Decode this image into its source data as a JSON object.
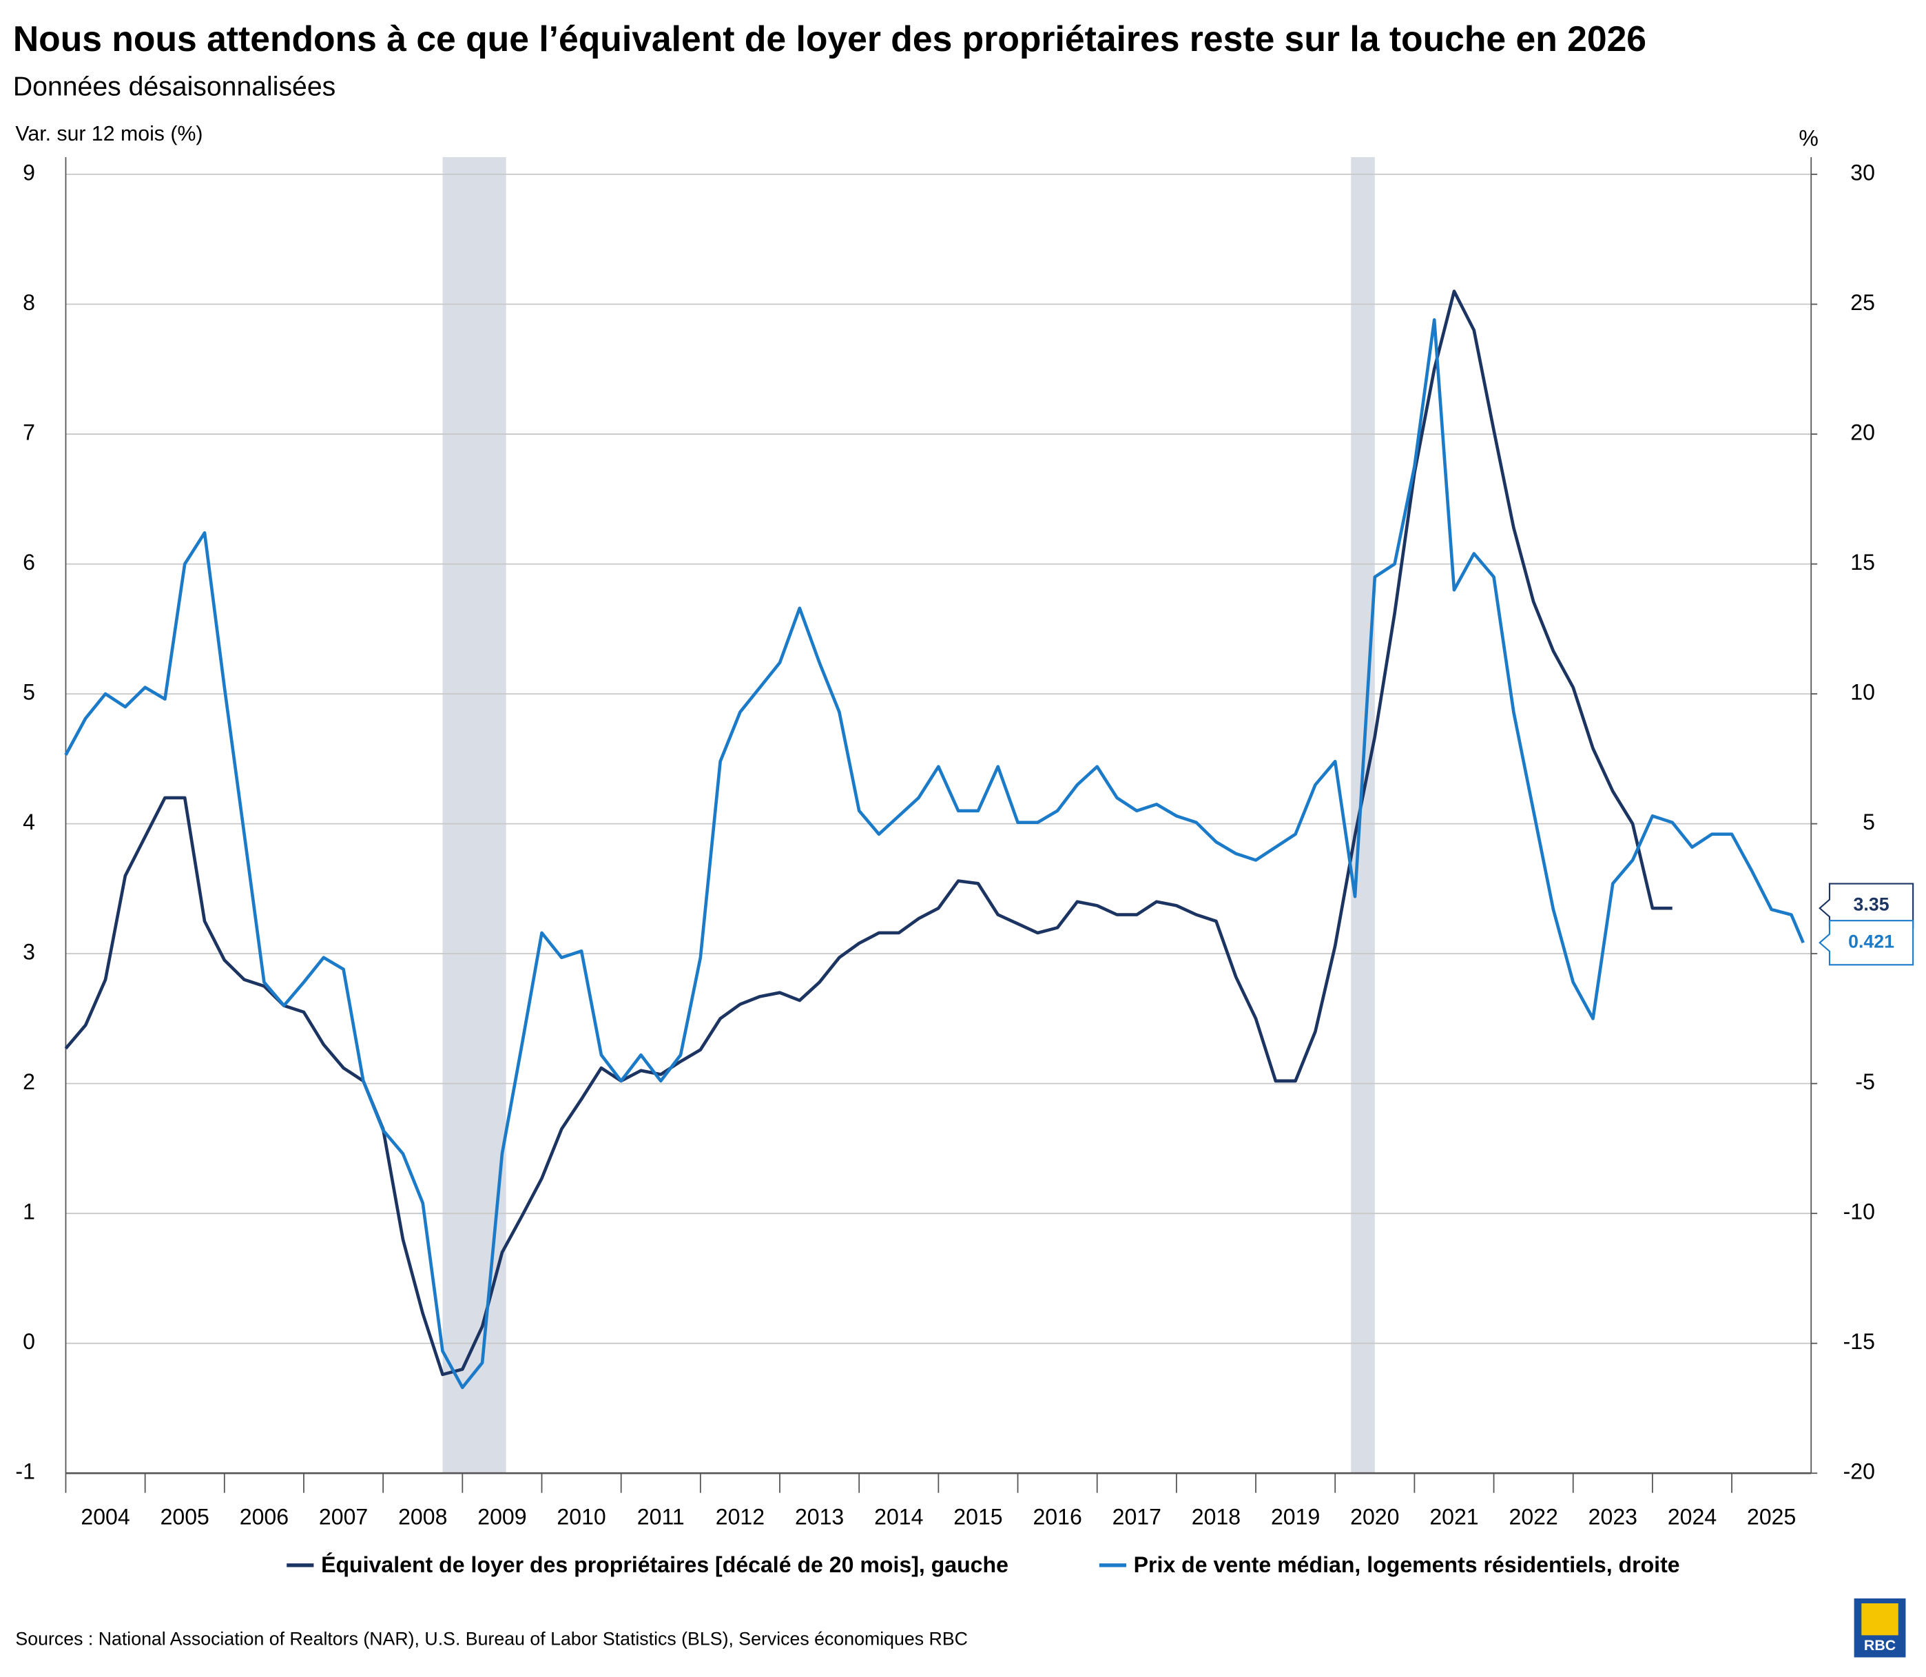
{
  "chart_data": {
    "type": "line",
    "title": "Nous nous attendons à ce que l’équivalent de loyer des propriétaires reste sur la touche en 2026",
    "subtitle": "Données désaisonnalisées",
    "y_label": "Var. sur 12 mois (%)",
    "y2_label": "%",
    "source": "Sources : National Association of Realtors (NAR), U.S. Bureau of Labor Statistics (BLS), Services économiques RBC",
    "logo": "RBC",
    "xlim": [
      2004,
      2026
    ],
    "xticks": [
      2004,
      2005,
      2006,
      2007,
      2008,
      2009,
      2010,
      2011,
      2012,
      2013,
      2014,
      2015,
      2016,
      2017,
      2018,
      2019,
      2020,
      2021,
      2022,
      2023,
      2024,
      2025
    ],
    "ylim": [
      -1,
      9
    ],
    "yticks": [
      -1,
      0,
      1,
      2,
      3,
      4,
      5,
      6,
      7,
      8,
      9
    ],
    "y2lim": [
      -20,
      30
    ],
    "y2ticks": [
      -20,
      -15,
      -10,
      -5,
      0,
      5,
      10,
      15,
      20,
      25,
      30
    ],
    "grid": true,
    "shaded_periods": [
      [
        2008.75,
        2009.55
      ],
      [
        2020.2,
        2020.5
      ]
    ],
    "series": [
      {
        "name": "Équivalent de loyer des propriétaires [décalé de 20 mois], gauche",
        "color": "#1c3461",
        "axis": "y",
        "x": [
          2004,
          2004.25,
          2004.5,
          2004.75,
          2005,
          2005.25,
          2005.5,
          2005.75,
          2006,
          2006.25,
          2006.5,
          2006.75,
          2007,
          2007.25,
          2007.5,
          2007.75,
          2008,
          2008.25,
          2008.5,
          2008.75,
          2009,
          2009.25,
          2009.5,
          2009.75,
          2010,
          2010.25,
          2010.5,
          2010.75,
          2011,
          2011.25,
          2011.5,
          2011.75,
          2012,
          2012.25,
          2012.5,
          2012.75,
          2013,
          2013.25,
          2013.5,
          2013.75,
          2014,
          2014.25,
          2014.5,
          2014.75,
          2015,
          2015.25,
          2015.5,
          2015.75,
          2016,
          2016.25,
          2016.5,
          2016.75,
          2017,
          2017.25,
          2017.5,
          2017.75,
          2018,
          2018.25,
          2018.5,
          2018.75,
          2019,
          2019.25,
          2019.5,
          2019.75,
          2020,
          2020.25,
          2020.5,
          2020.75,
          2021,
          2021.25,
          2021.5,
          2021.75,
          2022,
          2022.25,
          2022.5,
          2022.75,
          2023,
          2023.25,
          2023.5,
          2023.75,
          2024,
          2024.25
        ],
        "values": [
          2.27,
          2.45,
          2.8,
          3.6,
          3.9,
          4.2,
          4.2,
          3.25,
          2.95,
          2.8,
          2.75,
          2.6,
          2.55,
          2.3,
          2.12,
          2.02,
          1.65,
          0.8,
          0.23,
          -0.24,
          -0.2,
          0.13,
          0.7,
          0.98,
          1.27,
          1.65,
          1.88,
          2.12,
          2.02,
          2.1,
          2.07,
          2.17,
          2.26,
          2.5,
          2.61,
          2.67,
          2.7,
          2.64,
          2.78,
          2.97,
          3.08,
          3.16,
          3.16,
          3.27,
          3.35,
          3.56,
          3.54,
          3.3,
          3.23,
          3.16,
          3.2,
          3.4,
          3.37,
          3.3,
          3.3,
          3.4,
          3.37,
          3.3,
          3.25,
          2.82,
          2.5,
          2.02,
          2.02,
          2.4,
          3.06,
          3.91,
          4.67,
          5.62,
          6.7,
          7.5,
          8.1,
          7.8,
          7.03,
          6.28,
          5.71,
          5.33,
          5.05,
          4.58,
          4.25,
          4.0,
          3.35,
          3.35
        ]
      },
      {
        "name": "Prix de vente médian, logements résidentiels, droite",
        "color": "#1b7bc8",
        "axis": "y2",
        "x": [
          2004,
          2004.25,
          2004.5,
          2004.75,
          2005,
          2005.25,
          2005.5,
          2005.75,
          2006,
          2006.25,
          2006.5,
          2006.75,
          2007,
          2007.25,
          2007.5,
          2007.75,
          2008,
          2008.25,
          2008.5,
          2008.75,
          2009,
          2009.25,
          2009.5,
          2009.75,
          2010,
          2010.25,
          2010.5,
          2010.75,
          2011,
          2011.25,
          2011.5,
          2011.75,
          2012,
          2012.25,
          2012.5,
          2012.75,
          2013,
          2013.25,
          2013.5,
          2013.75,
          2014,
          2014.25,
          2014.5,
          2014.75,
          2015,
          2015.25,
          2015.5,
          2015.75,
          2016,
          2016.25,
          2016.5,
          2016.75,
          2017,
          2017.25,
          2017.5,
          2017.75,
          2018,
          2018.25,
          2018.5,
          2018.75,
          2019,
          2019.25,
          2019.5,
          2019.75,
          2020,
          2020.25,
          2020.5,
          2020.75,
          2021,
          2021.25,
          2021.5,
          2021.75,
          2022,
          2022.25,
          2022.5,
          2022.75,
          2023,
          2023.25,
          2023.5,
          2023.75,
          2024,
          2024.25,
          2024.5,
          2024.75,
          2025,
          2025.25,
          2025.5,
          2025.75,
          2025.9
        ],
        "values": [
          7.65,
          9.06,
          10.0,
          9.5,
          10.25,
          9.8,
          15.0,
          16.2,
          10.25,
          4.6,
          -1.1,
          -2.0,
          -1.1,
          -0.15,
          -0.6,
          -4.9,
          -6.8,
          -7.7,
          -9.6,
          -15.3,
          -16.7,
          -15.75,
          -7.7,
          -3.5,
          0.8,
          -0.15,
          0.1,
          -3.9,
          -4.9,
          -3.9,
          -4.9,
          -3.9,
          -0.15,
          7.4,
          9.3,
          10.25,
          11.2,
          13.3,
          11.2,
          9.3,
          5.5,
          4.6,
          5.3,
          6.0,
          7.2,
          5.5,
          5.5,
          7.2,
          5.05,
          5.05,
          5.5,
          6.5,
          7.2,
          6.0,
          5.5,
          5.75,
          5.3,
          5.05,
          4.3,
          3.85,
          3.6,
          4.1,
          4.6,
          6.5,
          7.4,
          2.2,
          14.5,
          15.0,
          18.75,
          24.4,
          14.0,
          15.4,
          14.5,
          9.3,
          5.5,
          1.7,
          -1.1,
          -2.5,
          2.7,
          3.6,
          5.3,
          5.05,
          4.1,
          4.6,
          4.6,
          3.2,
          1.7,
          1.5,
          0.421
        ]
      }
    ]
  }
}
